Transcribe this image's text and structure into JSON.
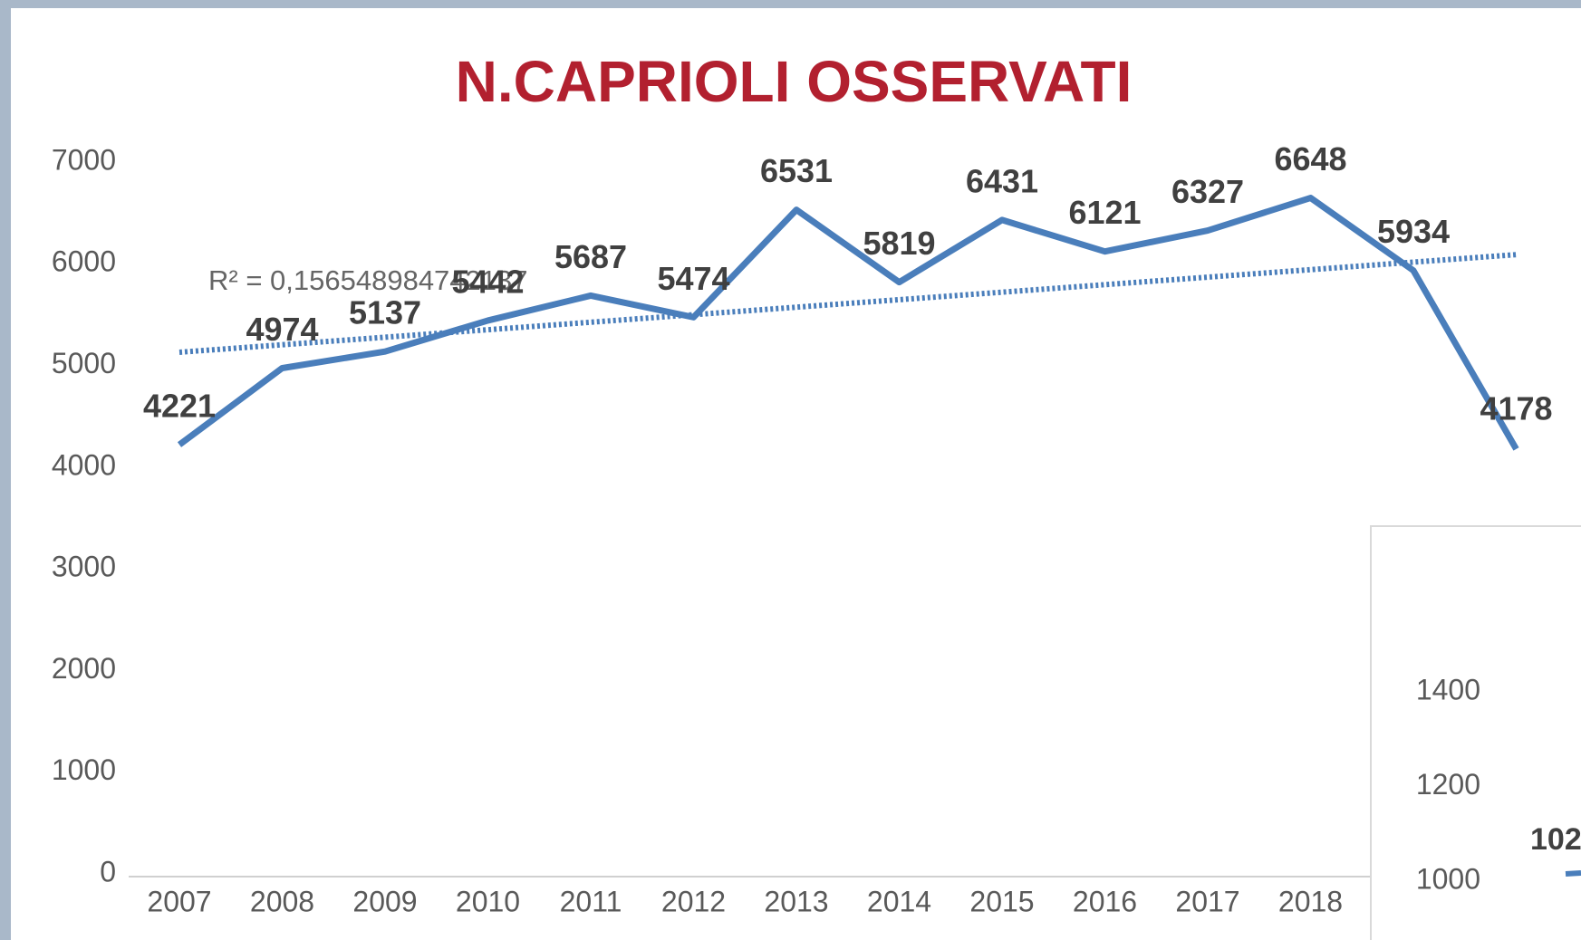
{
  "chart_data": {
    "type": "line",
    "title": "N.CAPRIOLI OSSERVATI",
    "categories": [
      "2007",
      "2008",
      "2009",
      "2010",
      "2011",
      "2012",
      "2013",
      "2014",
      "2015",
      "2016",
      "2017",
      "2018",
      null,
      null
    ],
    "series": [
      {
        "color": "#4a7ebb",
        "values": [
          4221,
          4974,
          5137,
          5442,
          5687,
          5474,
          6531,
          5819,
          6431,
          6121,
          6327,
          6648,
          5934,
          4178
        ]
      }
    ],
    "ylim": [
      0,
      7000
    ],
    "yticks": [
      0,
      1000,
      2000,
      3000,
      4000,
      5000,
      6000,
      7000
    ],
    "trendline": {
      "values": [
        5130,
        6090
      ],
      "label": "R² = 0,156548984742137"
    },
    "inset": {
      "yticks": [
        1000,
        1200,
        1400
      ],
      "label": "102"
    }
  }
}
